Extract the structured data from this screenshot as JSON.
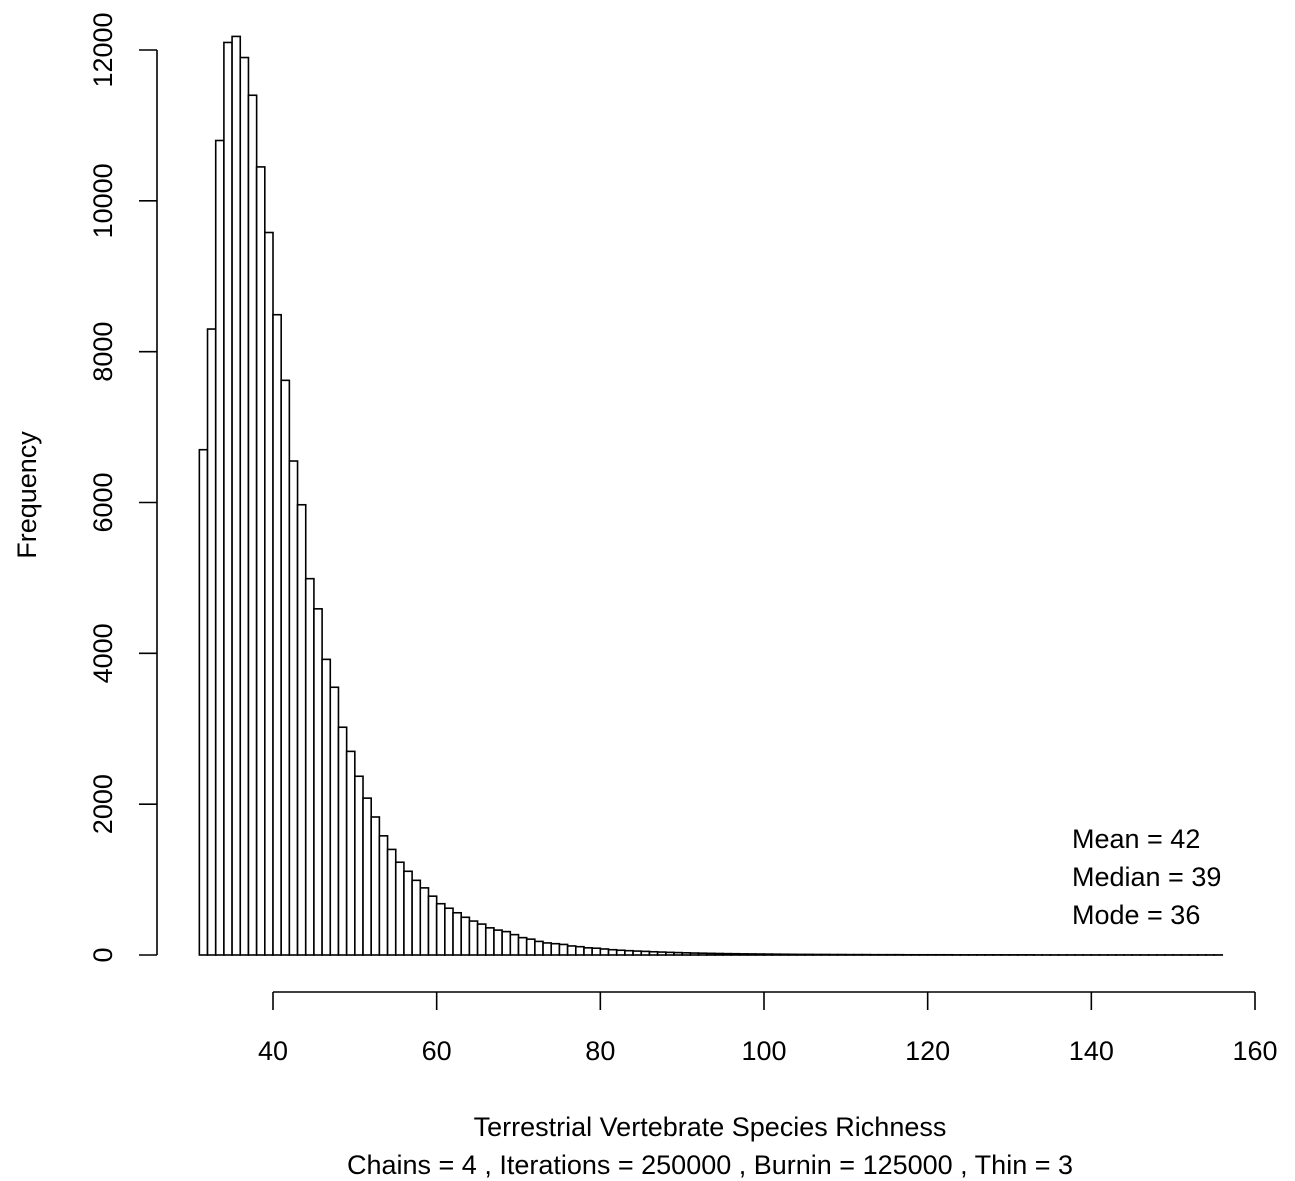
{
  "chart_data": {
    "type": "bar",
    "subtype": "histogram",
    "xlabel": "Terrestrial Vertebrate Species Richness",
    "ylabel": "Frequency",
    "subtitle": "Chains =  4 ,  Iterations = 250000 ,  Burnin = 125000 ,  Thin = 3",
    "annotations": [
      "Mean = 42",
      "Median = 39",
      "Mode = 36"
    ],
    "x_ticks": [
      40,
      60,
      80,
      100,
      120,
      140,
      160
    ],
    "y_ticks": [
      0,
      2000,
      4000,
      6000,
      8000,
      10000,
      12000
    ],
    "xlim": [
      40,
      160
    ],
    "ylim": [
      0,
      12000
    ],
    "bin_width": 1,
    "bin_start": 31,
    "values": [
      6700,
      8300,
      10800,
      12100,
      12180,
      11900,
      11400,
      10450,
      9580,
      8490,
      7620,
      6550,
      5970,
      4990,
      4590,
      3920,
      3550,
      3020,
      2700,
      2370,
      2080,
      1830,
      1580,
      1400,
      1230,
      1110,
      990,
      890,
      780,
      680,
      620,
      560,
      500,
      450,
      410,
      360,
      330,
      310,
      270,
      230,
      210,
      180,
      160,
      150,
      140,
      120,
      110,
      95,
      90,
      80,
      70,
      63,
      57,
      52,
      48,
      43,
      39,
      35,
      32,
      29,
      26,
      24,
      22,
      20,
      18,
      17,
      15,
      14,
      13,
      12,
      11,
      10,
      9,
      8,
      8,
      7,
      7,
      6,
      6,
      5,
      5,
      5,
      4,
      4,
      4,
      4,
      3,
      3,
      3,
      3,
      3,
      3,
      2,
      2,
      2,
      2,
      2,
      2,
      2,
      2,
      2,
      2,
      1,
      1,
      1,
      1,
      1,
      1,
      1,
      1,
      1,
      1,
      1,
      1,
      1,
      1,
      1,
      1,
      1,
      1,
      1,
      1,
      1,
      1,
      1
    ],
    "grid": false,
    "colors": {
      "bar_fill": "#ffffff",
      "bar_stroke": "#000000"
    }
  }
}
